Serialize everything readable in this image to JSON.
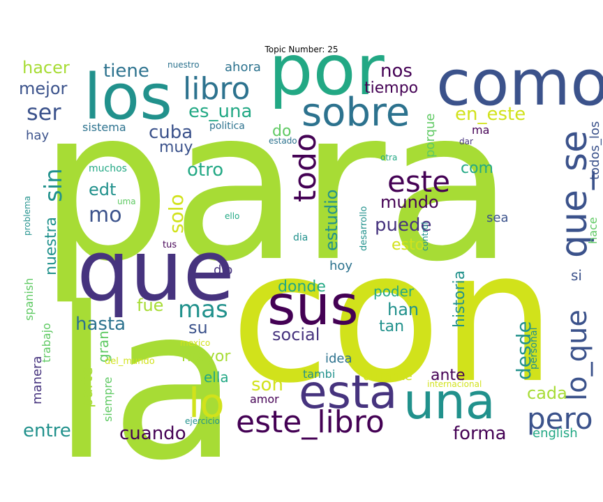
{
  "title": "Topic Number: 25",
  "palette": {
    "lime": "#a7dc35",
    "yellow": "#d1e21b",
    "teal": "#21918c",
    "green": "#22a884",
    "blue": "#3b528b",
    "indigo": "#46337e",
    "purple": "#440154",
    "mint": "#5ec962",
    "steel": "#2c728e"
  },
  "words": [
    {
      "text": "para",
      "color": "#a7dc35"
    },
    {
      "text": "con",
      "color": "#d1e21b"
    },
    {
      "text": "la",
      "color": "#a7dc35"
    },
    {
      "text": "que",
      "color": "#46337e"
    },
    {
      "text": "por",
      "color": "#22a884"
    },
    {
      "text": "como",
      "color": "#3b528b"
    },
    {
      "text": "los",
      "color": "#21918c"
    },
    {
      "text": "sobre",
      "color": "#2c728e"
    },
    {
      "text": "sus",
      "color": "#440154"
    },
    {
      "text": "una",
      "color": "#21918c"
    },
    {
      "text": "esta",
      "color": "#46337e"
    },
    {
      "text": "que_se",
      "color": "#3b528b"
    },
    {
      "text": "este_libro",
      "color": "#440154"
    },
    {
      "text": "libro",
      "color": "#2c728e"
    },
    {
      "text": "este",
      "color": "#440154"
    },
    {
      "text": "todo",
      "color": "#440154"
    },
    {
      "text": "pero",
      "color": "#3b528b"
    },
    {
      "text": "lo",
      "color": "#d1e21b"
    },
    {
      "text": "lo_que",
      "color": "#3b528b"
    },
    {
      "text": "mas",
      "color": "#21918c"
    },
    {
      "text": "ser",
      "color": "#3b528b"
    },
    {
      "text": "es_una",
      "color": "#22a884"
    },
    {
      "text": "en_este",
      "color": "#d1e21b"
    },
    {
      "text": "nos",
      "color": "#440154"
    },
    {
      "text": "tiempo",
      "color": "#440154"
    },
    {
      "text": "tiene",
      "color": "#2c728e"
    },
    {
      "text": "hacer",
      "color": "#a7dc35"
    },
    {
      "text": "mejor",
      "color": "#3b528b"
    },
    {
      "text": "ahora",
      "color": "#2c728e"
    },
    {
      "text": "nuestro",
      "color": "#2c728e"
    },
    {
      "text": "cuba",
      "color": "#3b528b"
    },
    {
      "text": "sistema",
      "color": "#2c728e"
    },
    {
      "text": "politica",
      "color": "#2c728e"
    },
    {
      "text": "do",
      "color": "#5ec962"
    },
    {
      "text": "muy",
      "color": "#3b528b"
    },
    {
      "text": "porque",
      "color": "#5ec962"
    },
    {
      "text": "ma",
      "color": "#440154"
    },
    {
      "text": "dar",
      "color": "#46337e"
    },
    {
      "text": "estado",
      "color": "#2c728e"
    },
    {
      "text": "todos_los",
      "color": "#3b528b"
    },
    {
      "text": "hay",
      "color": "#3b528b"
    },
    {
      "text": "sin",
      "color": "#21918c"
    },
    {
      "text": "otro",
      "color": "#22a884"
    },
    {
      "text": "com",
      "color": "#22a884"
    },
    {
      "text": "otra",
      "color": "#22a884"
    },
    {
      "text": "edt",
      "color": "#21918c"
    },
    {
      "text": "muchos",
      "color": "#22a884"
    },
    {
      "text": "uma",
      "color": "#5ec962"
    },
    {
      "text": "solo",
      "color": "#d1e21b"
    },
    {
      "text": "mo",
      "color": "#3b528b"
    },
    {
      "text": "estudio",
      "color": "#21918c"
    },
    {
      "text": "mundo",
      "color": "#440154"
    },
    {
      "text": "desarrollo",
      "color": "#21918c"
    },
    {
      "text": "ello",
      "color": "#22a884"
    },
    {
      "text": "puede",
      "color": "#46337e"
    },
    {
      "text": "sea",
      "color": "#3b528b"
    },
    {
      "text": "hace",
      "color": "#5ec962"
    },
    {
      "text": "control",
      "color": "#21918c"
    },
    {
      "text": "dia",
      "color": "#21918c"
    },
    {
      "text": "esto",
      "color": "#d1e21b"
    },
    {
      "text": "problema",
      "color": "#21918c"
    },
    {
      "text": "nuestra",
      "color": "#21918c"
    },
    {
      "text": "tus",
      "color": "#440154"
    },
    {
      "text": "spanish",
      "color": "#5ec962"
    },
    {
      "text": "dio",
      "color": "#46337e"
    },
    {
      "text": "hoy",
      "color": "#2c728e"
    },
    {
      "text": "historia",
      "color": "#21918c"
    },
    {
      "text": "si",
      "color": "#3b528b"
    },
    {
      "text": "donde",
      "color": "#22a884"
    },
    {
      "text": "poder",
      "color": "#22a884"
    },
    {
      "text": "fue",
      "color": "#a7dc35"
    },
    {
      "text": "han",
      "color": "#21918c"
    },
    {
      "text": "desde",
      "color": "#21918c"
    },
    {
      "text": "personal",
      "color": "#21918c"
    },
    {
      "text": "hasta",
      "color": "#2c728e"
    },
    {
      "text": "su",
      "color": "#3b528b"
    },
    {
      "text": "tan",
      "color": "#21918c"
    },
    {
      "text": "trabajo",
      "color": "#5ec962"
    },
    {
      "text": "social",
      "color": "#46337e"
    },
    {
      "text": "gran",
      "color": "#5ec962"
    },
    {
      "text": "mexico",
      "color": "#d1e21b"
    },
    {
      "text": "mayor",
      "color": "#a7dc35"
    },
    {
      "text": "idea",
      "color": "#2c728e"
    },
    {
      "text": "del_mundo",
      "color": "#d1e21b"
    },
    {
      "text": "manera",
      "color": "#46337e"
    },
    {
      "text": "parte",
      "color": "#a7dc35"
    },
    {
      "text": "ella",
      "color": "#22a884"
    },
    {
      "text": "tambi",
      "color": "#21918c"
    },
    {
      "text": "durante",
      "color": "#d1e21b"
    },
    {
      "text": "ante",
      "color": "#440154"
    },
    {
      "text": "internacional",
      "color": "#d1e21b"
    },
    {
      "text": "siempre",
      "color": "#5ec962"
    },
    {
      "text": "son",
      "color": "#d1e21b"
    },
    {
      "text": "amor",
      "color": "#440154"
    },
    {
      "text": "cada",
      "color": "#a7dc35"
    },
    {
      "text": "ejercicio",
      "color": "#21918c"
    },
    {
      "text": "entre",
      "color": "#21918c"
    },
    {
      "text": "cuando",
      "color": "#440154"
    },
    {
      "text": "forma",
      "color": "#440154"
    },
    {
      "text": "english",
      "color": "#22a884"
    }
  ]
}
